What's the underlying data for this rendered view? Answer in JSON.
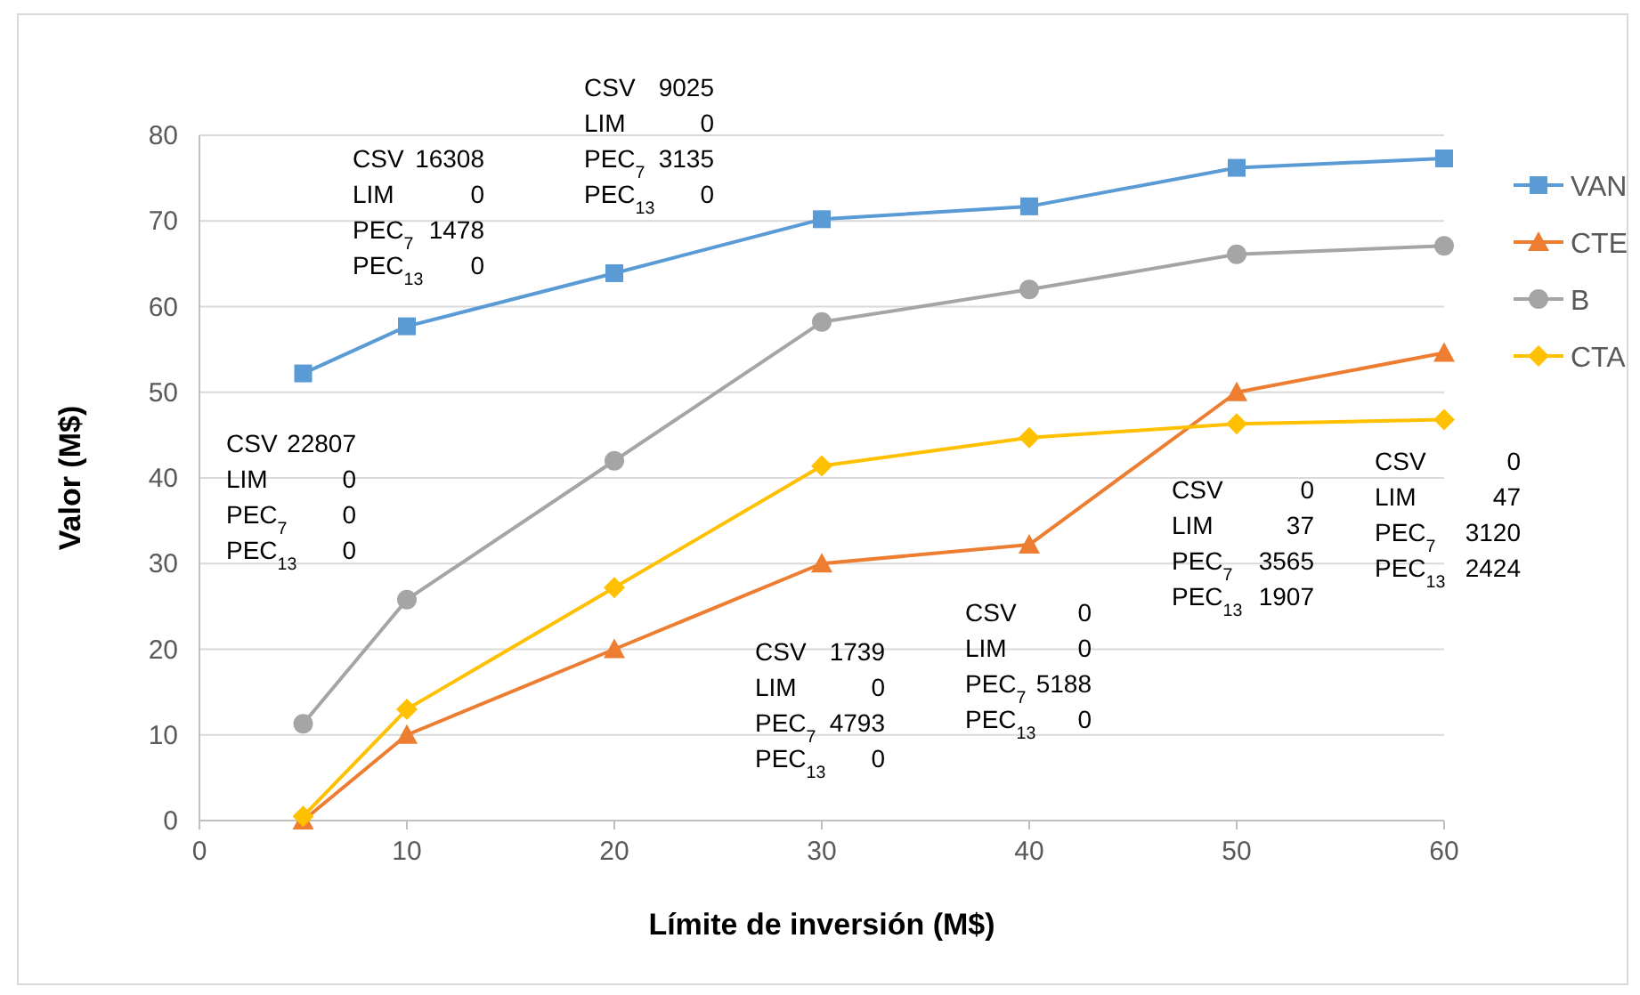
{
  "chart_data": {
    "type": "line",
    "xlabel": "Límite de inversión (M$)",
    "ylabel": "Valor (M$)",
    "x": [
      5,
      10,
      20,
      30,
      40,
      50,
      60
    ],
    "xlim": [
      0,
      60
    ],
    "xticks": [
      0,
      10,
      20,
      30,
      40,
      50,
      60
    ],
    "ylim": [
      0,
      80
    ],
    "yticks": [
      0,
      10,
      20,
      30,
      40,
      50,
      60,
      70,
      80
    ],
    "grid": "y",
    "legend": "right",
    "series": [
      {
        "name": "VAN",
        "color": "#5b9bd5",
        "marker": "square",
        "values": [
          52.2,
          57.7,
          63.9,
          70.2,
          71.7,
          76.2,
          77.3
        ]
      },
      {
        "name": "CTE",
        "color": "#ed7d31",
        "marker": "triangle",
        "values": [
          0,
          10,
          20,
          30,
          32.2,
          50,
          54.6
        ]
      },
      {
        "name": "B",
        "color": "#a5a5a5",
        "marker": "circle",
        "values": [
          11.3,
          25.8,
          42.0,
          58.2,
          62.0,
          66.1,
          67.1
        ]
      },
      {
        "name": "CTA",
        "color": "#ffc000",
        "marker": "diamond",
        "values": [
          0.5,
          13.0,
          27.2,
          41.4,
          44.7,
          46.3,
          46.8
        ]
      }
    ],
    "annotations": [
      "CSV 22807\nLIM 0\nPEC$_{7}$ 0\nPEC$_{13}$ 0",
      "CSV 16308\nLIM 0\nPEC$_{7}$ 1478\nPEC$_{13}$ 0",
      "CSV 9025\nLIM 0\nPEC$_{7}$ 3135\nPEC$_{13}$ 0",
      "CSV 1739\nLIM 0\nPEC$_{7}$ 4793\nPEC$_{13}$ 0",
      "CSV 0\nLIM 0\nPEC$_{7}$ 5188\nPEC$_{13}$ 0",
      "CSV 0\nLIM 37\nPEC$_{7}$ 3565\nPEC$_{13}$ 1907",
      "CSV 0\nLIM 47\nPEC$_{7}$ 3120\nPEC$_{13}$ 2424"
    ]
  }
}
